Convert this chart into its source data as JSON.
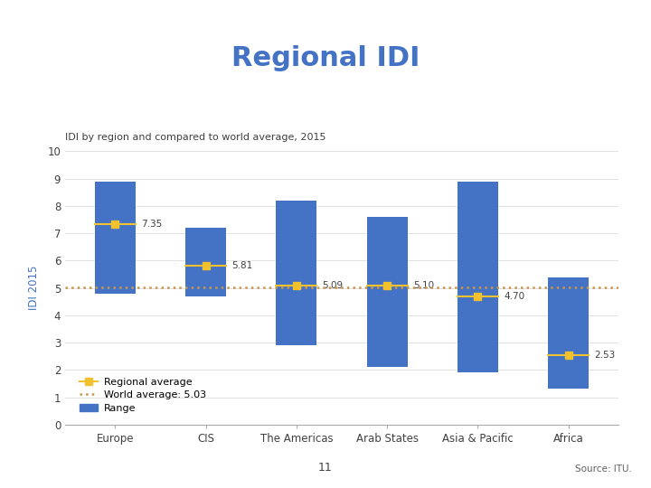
{
  "title": "Regional IDI",
  "subtitle": "IDI by region and compared to world average, 2015",
  "ylabel": "IDI 2015",
  "world_average": 5.03,
  "regions": [
    "Europe",
    "CIS",
    "The Americas",
    "Arab States",
    "Asia & Pacific",
    "Africa"
  ],
  "range_low": [
    4.8,
    4.7,
    2.9,
    2.1,
    1.9,
    1.3
  ],
  "range_high": [
    8.9,
    7.2,
    8.2,
    7.6,
    8.9,
    5.4
  ],
  "regional_avg": [
    7.35,
    5.81,
    5.09,
    5.1,
    4.7,
    2.53
  ],
  "bar_color": "#4472C4",
  "avg_color": "#F2C12E",
  "world_avg_color": "#C8964A",
  "title_color": "#4472C4",
  "subtitle_color": "#404040",
  "ylim": [
    0,
    10
  ],
  "yticks": [
    0,
    1,
    2,
    3,
    4,
    5,
    6,
    7,
    8,
    9,
    10
  ],
  "bar_width": 0.45,
  "footnote": "11",
  "source": "Source: ITU."
}
